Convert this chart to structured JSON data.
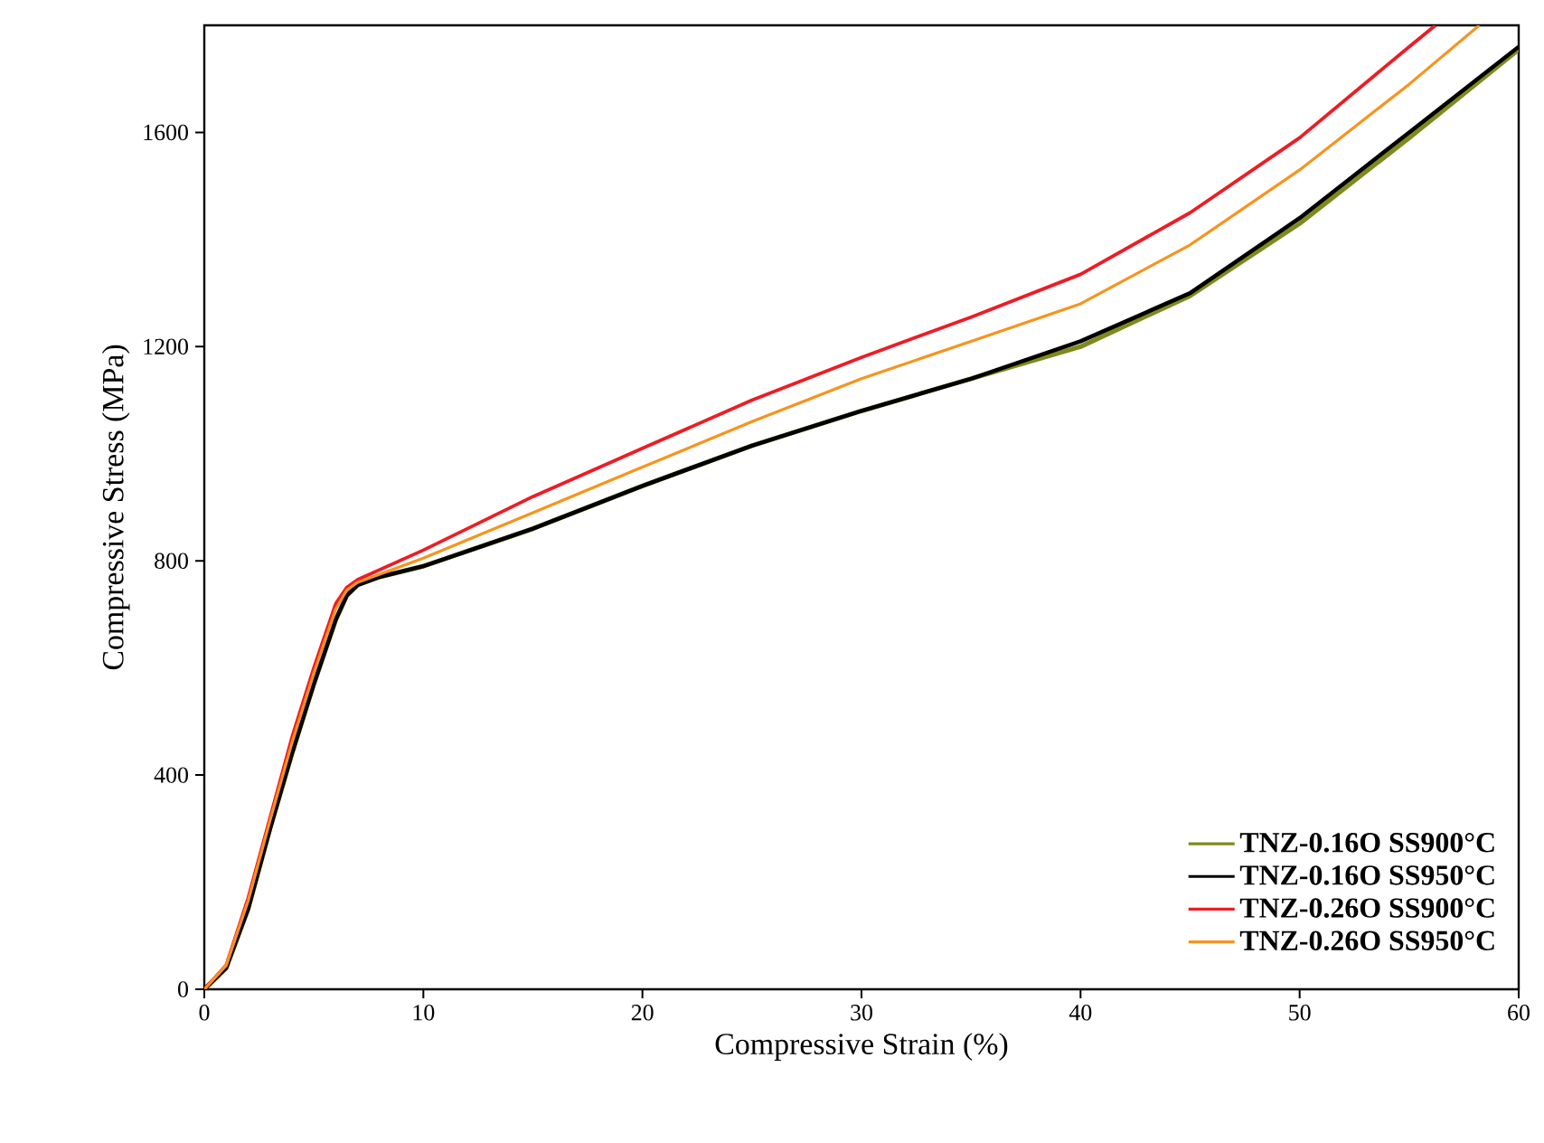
{
  "chart_data": {
    "type": "line",
    "xlabel": "Compressive Strain (%)",
    "ylabel": "Compressive Stress (MPa)",
    "xlim": [
      0,
      60
    ],
    "ylim": [
      0,
      1800
    ],
    "xticks": [
      0,
      10,
      20,
      30,
      40,
      50,
      60
    ],
    "yticks": [
      0,
      400,
      800,
      1200,
      1600
    ],
    "grid": false,
    "legend": "bottom right",
    "line_style": "solid",
    "marker": "none",
    "series": [
      {
        "name": "TNZ-0.16O SS900°C",
        "color": "#7f8a1e",
        "x": [
          0,
          1,
          2,
          3,
          4,
          5,
          6,
          6.5,
          7,
          8,
          10,
          15,
          20,
          25,
          30,
          35,
          40,
          45,
          50,
          55,
          60
        ],
        "values": [
          0,
          40,
          150,
          300,
          440,
          570,
          690,
          735,
          755,
          770,
          790,
          860,
          940,
          1015,
          1080,
          1140,
          1200,
          1295,
          1430,
          1590,
          1755
        ]
      },
      {
        "name": "TNZ-0.16O SS950°C",
        "color": "#000000",
        "x": [
          0,
          1,
          2,
          3,
          4,
          5,
          6,
          6.5,
          7,
          8,
          10,
          15,
          20,
          25,
          30,
          35,
          40,
          45,
          50,
          55,
          60
        ],
        "values": [
          0,
          40,
          150,
          300,
          440,
          570,
          690,
          735,
          755,
          770,
          790,
          860,
          940,
          1015,
          1080,
          1140,
          1210,
          1300,
          1440,
          1600,
          1760
        ]
      },
      {
        "name": "TNZ-0.26O SS900°C",
        "color": "#ee1c25",
        "x": [
          0,
          1,
          2,
          3,
          4,
          5,
          6,
          6.5,
          7,
          10,
          15,
          20,
          25,
          30,
          35,
          40,
          45,
          50,
          55,
          56.2
        ],
        "values": [
          0,
          45,
          170,
          320,
          470,
          600,
          720,
          750,
          765,
          820,
          920,
          1010,
          1100,
          1180,
          1255,
          1335,
          1450,
          1590,
          1760,
          1800
        ]
      },
      {
        "name": "TNZ-0.26O SS950°C",
        "color": "#f7941d",
        "x": [
          0,
          1,
          2,
          3,
          4,
          5,
          6,
          6.5,
          7,
          10,
          15,
          20,
          25,
          30,
          35,
          40,
          45,
          50,
          55,
          58.2
        ],
        "values": [
          0,
          45,
          165,
          315,
          460,
          590,
          710,
          745,
          760,
          805,
          890,
          975,
          1060,
          1140,
          1210,
          1280,
          1390,
          1530,
          1690,
          1800
        ]
      }
    ]
  }
}
